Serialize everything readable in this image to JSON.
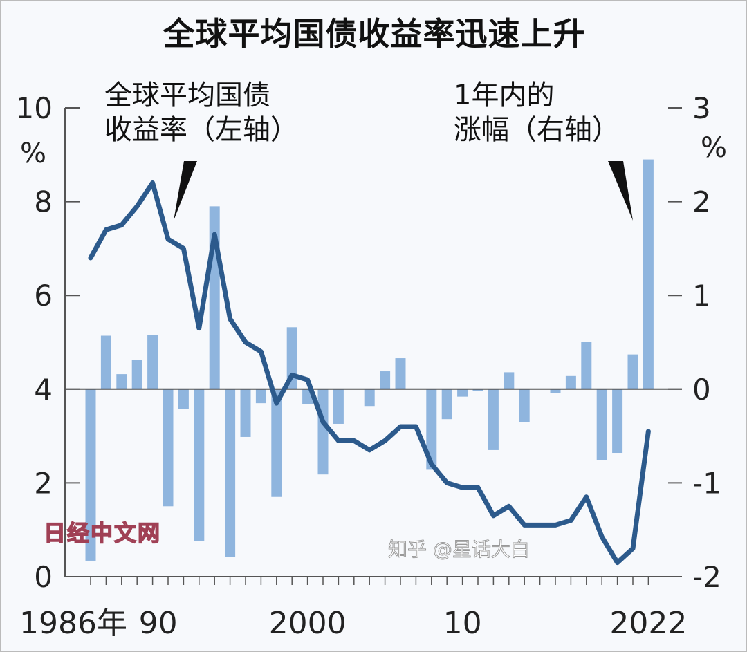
{
  "chart_data": {
    "type": "bar+line",
    "title": "全球平均国债收益率迅速上升",
    "annotations": {
      "line_label": "全球平均国债\n收益率（左轴）",
      "bar_label": "1年内的\n涨幅（右轴）"
    },
    "left_axis": {
      "unit": "%",
      "range": [
        0,
        10
      ],
      "ticks": [
        0,
        2,
        4,
        6,
        8,
        10
      ]
    },
    "right_axis": {
      "unit": "%",
      "range": [
        -2,
        3
      ],
      "ticks": [
        -2,
        -1,
        0,
        1,
        2,
        3
      ]
    },
    "x_tick_labels": [
      {
        "year": 1986,
        "label": "1986年"
      },
      {
        "year": 1990,
        "label": "90"
      },
      {
        "year": 2000,
        "label": "2000"
      },
      {
        "year": 2010,
        "label": "10"
      },
      {
        "year": 2022,
        "label": "2022"
      }
    ],
    "x": [
      1986,
      1987,
      1988,
      1989,
      1990,
      1991,
      1992,
      1993,
      1994,
      1995,
      1996,
      1997,
      1998,
      1999,
      2000,
      2001,
      2002,
      2003,
      2004,
      2005,
      2006,
      2007,
      2008,
      2009,
      2010,
      2011,
      2012,
      2013,
      2014,
      2015,
      2016,
      2017,
      2018,
      2019,
      2020,
      2021,
      2022
    ],
    "series": [
      {
        "type": "line",
        "axis": "left",
        "color": "#2c5a8c",
        "values": [
          6.8,
          7.4,
          7.5,
          7.9,
          8.4,
          7.2,
          7.0,
          5.3,
          7.3,
          5.5,
          5.0,
          4.8,
          3.7,
          4.3,
          4.2,
          3.3,
          2.9,
          2.9,
          2.7,
          2.9,
          3.2,
          3.2,
          2.4,
          2.0,
          1.9,
          1.9,
          1.3,
          1.5,
          1.1,
          1.1,
          1.1,
          1.2,
          1.7,
          0.85,
          0.3,
          0.6,
          3.1
        ]
      },
      {
        "type": "bar",
        "axis": "right",
        "color": "#8fb5de",
        "values": [
          -1.83,
          0.57,
          0.16,
          0.31,
          0.58,
          -1.25,
          -0.21,
          -1.62,
          1.95,
          -1.79,
          -0.51,
          -0.15,
          -1.15,
          0.66,
          -0.16,
          -0.91,
          -0.37,
          0,
          -0.18,
          0.19,
          0.33,
          0,
          -0.86,
          -0.32,
          -0.08,
          -0.02,
          -0.65,
          0.18,
          -0.35,
          0,
          -0.04,
          0.14,
          0.5,
          -0.76,
          -0.68,
          0.37,
          2.45
        ]
      }
    ]
  },
  "watermarks": {
    "source": "日经中文网",
    "platform": "知乎 @星话大白"
  }
}
